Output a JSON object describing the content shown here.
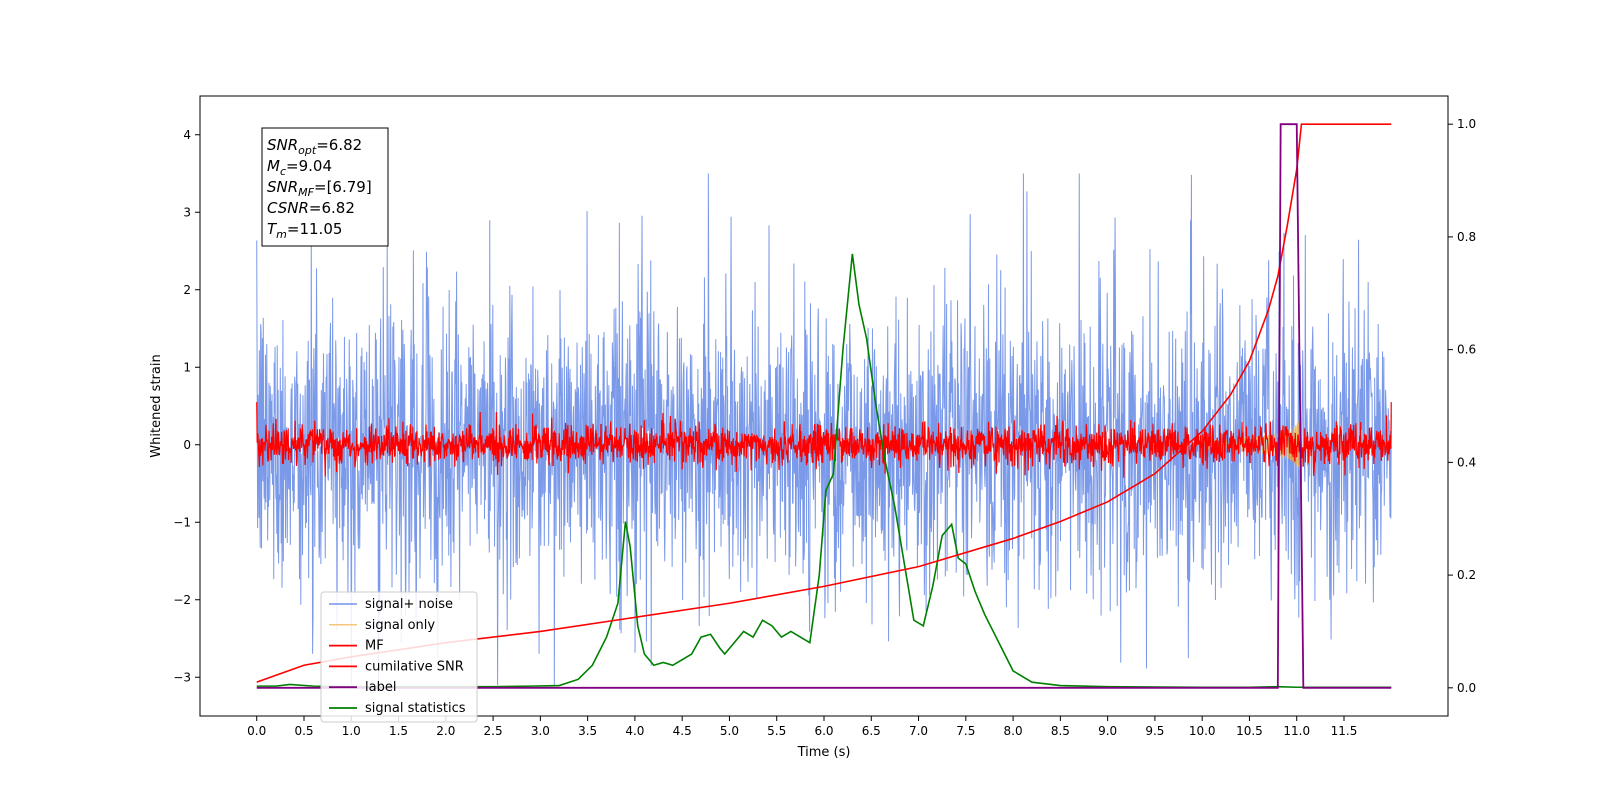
{
  "chart_data": {
    "type": "line",
    "xlabel": "Time (s)",
    "ylabel": "Whitened strain",
    "xlim": [
      -0.6,
      12.6
    ],
    "ylim": [
      -3.5,
      4.5
    ],
    "y2lim": [
      -0.05,
      1.05
    ],
    "x_ticks": [
      "0.0",
      "0.5",
      "1.0",
      "1.5",
      "2.0",
      "2.5",
      "3.0",
      "3.5",
      "4.0",
      "4.5",
      "5.0",
      "5.5",
      "6.0",
      "6.5",
      "7.0",
      "7.5",
      "8.0",
      "8.5",
      "9.0",
      "9.5",
      "10.0",
      "10.5",
      "11.0",
      "11.5"
    ],
    "y_ticks": [
      "−3",
      "−2",
      "−1",
      "0",
      "1",
      "2",
      "3",
      "4"
    ],
    "y2_ticks": [
      "0.0",
      "0.2",
      "0.4",
      "0.6",
      "0.8",
      "1.0"
    ],
    "annotation": {
      "lines": [
        {
          "sym": "SNR",
          "sub": "opt",
          "val": "=6.82"
        },
        {
          "sym": "M",
          "sub": "c",
          "val": "=9.04"
        },
        {
          "sym": "SNR",
          "sub": "MF",
          "val": "=[6.79]"
        },
        {
          "sym": "CSNR",
          "sub": "",
          "val": "=6.82"
        },
        {
          "sym": "T",
          "sub": "m",
          "val": "=11.05"
        }
      ]
    },
    "legend_position": "lower-left",
    "series": [
      {
        "name": "signal+ noise",
        "color": "#7393e8",
        "axis": "left",
        "description": "dense noisy whitened strain, amplitude ~±2.5 with spikes to 3.5"
      },
      {
        "name": "signal only",
        "color": "#f5b041",
        "axis": "left",
        "chirp": {
          "peak_time": 11.05,
          "peak_amplitude": 0.4
        }
      },
      {
        "name": "MF",
        "color": "#ff0000",
        "axis": "left",
        "description": "matched filter output, amplitude ~±0.4 around 0"
      },
      {
        "name": "cumilative SNR",
        "color": "#ff0000",
        "axis": "right",
        "x": [
          0.0,
          0.5,
          1.0,
          2.0,
          3.0,
          4.0,
          5.0,
          6.0,
          7.0,
          8.0,
          8.5,
          9.0,
          9.5,
          10.0,
          10.3,
          10.5,
          10.7,
          10.8,
          10.9,
          11.0,
          11.05,
          12.0
        ],
        "values": [
          0.01,
          0.04,
          0.055,
          0.08,
          0.1,
          0.125,
          0.15,
          0.18,
          0.215,
          0.265,
          0.295,
          0.33,
          0.38,
          0.455,
          0.52,
          0.58,
          0.67,
          0.73,
          0.82,
          0.92,
          1.0,
          1.0
        ]
      },
      {
        "name": "label",
        "color": "#800080",
        "axis": "right",
        "x": [
          0.0,
          10.8,
          10.83,
          11.0,
          11.07,
          12.0
        ],
        "values": [
          0.0,
          0.0,
          1.0,
          1.0,
          0.0,
          0.0
        ]
      },
      {
        "name": "signal statistics",
        "color": "#008000",
        "axis": "right",
        "x": [
          0.0,
          0.2,
          0.35,
          0.6,
          1.0,
          1.5,
          2.0,
          2.5,
          2.9,
          3.2,
          3.4,
          3.55,
          3.7,
          3.82,
          3.9,
          3.95,
          4.03,
          4.1,
          4.2,
          4.3,
          4.4,
          4.5,
          4.6,
          4.7,
          4.8,
          4.9,
          4.95,
          5.05,
          5.15,
          5.25,
          5.35,
          5.45,
          5.55,
          5.65,
          5.75,
          5.85,
          5.95,
          6.02,
          6.1,
          6.2,
          6.3,
          6.37,
          6.45,
          6.55,
          6.65,
          6.75,
          6.85,
          6.95,
          7.05,
          7.15,
          7.25,
          7.35,
          7.42,
          7.5,
          7.6,
          7.7,
          7.85,
          8.0,
          8.2,
          8.5,
          9.0,
          10.0,
          10.5,
          10.8,
          11.0,
          12.0
        ],
        "values": [
          0.003,
          0.003,
          0.006,
          0.003,
          0.002,
          0.002,
          0.002,
          0.002,
          0.003,
          0.004,
          0.015,
          0.04,
          0.09,
          0.15,
          0.295,
          0.25,
          0.11,
          0.06,
          0.04,
          0.045,
          0.04,
          0.05,
          0.06,
          0.09,
          0.095,
          0.07,
          0.06,
          0.08,
          0.1,
          0.09,
          0.12,
          0.11,
          0.09,
          0.1,
          0.09,
          0.08,
          0.2,
          0.35,
          0.38,
          0.6,
          0.77,
          0.68,
          0.62,
          0.5,
          0.4,
          0.32,
          0.22,
          0.12,
          0.11,
          0.18,
          0.27,
          0.29,
          0.23,
          0.22,
          0.17,
          0.13,
          0.08,
          0.03,
          0.01,
          0.004,
          0.002,
          0.001,
          0.001,
          0.002,
          0.001,
          0.001
        ]
      }
    ]
  }
}
